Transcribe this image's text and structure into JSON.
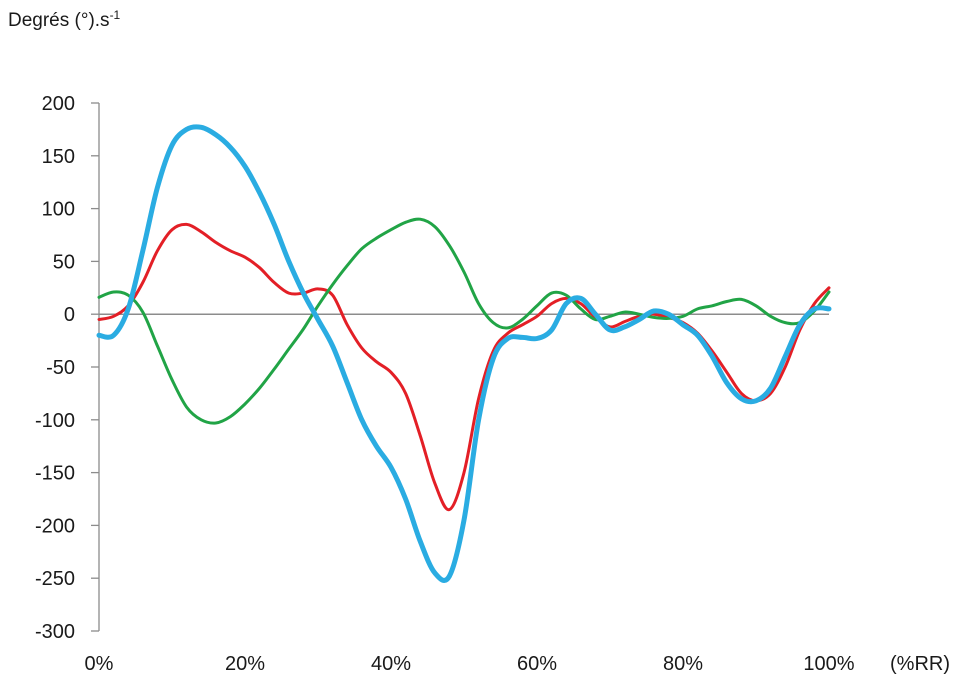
{
  "chart_data": {
    "type": "line",
    "ylabel_main": "Degrés (°).s",
    "ylabel_sup": "-1",
    "xunit_label": "(%RR)",
    "xlim": [
      0,
      100
    ],
    "ylim": [
      -300,
      200
    ],
    "x_ticks": [
      "0%",
      "20%",
      "40%",
      "60%",
      "80%",
      "100%"
    ],
    "x_tick_values": [
      0,
      20,
      40,
      60,
      80,
      100
    ],
    "y_ticks": [
      "200",
      "150",
      "100",
      "50",
      "0",
      "-50",
      "-100",
      "-150",
      "-200",
      "-250",
      "-300"
    ],
    "y_tick_values": [
      200,
      150,
      100,
      50,
      0,
      -50,
      -100,
      -150,
      -200,
      -250,
      -300
    ],
    "zero_line": true,
    "grid": false,
    "legend": "none",
    "series": [
      {
        "color": "#e31f26",
        "width": 3,
        "x": [
          0,
          2,
          4,
          6,
          8,
          10,
          12,
          14,
          16,
          18,
          20,
          22,
          24,
          26,
          28,
          30,
          32,
          34,
          36,
          38,
          40,
          42,
          44,
          46,
          48,
          50,
          52,
          54,
          56,
          58,
          60,
          62,
          64,
          66,
          68,
          70,
          72,
          74,
          76,
          78,
          80,
          82,
          84,
          86,
          88,
          90,
          92,
          94,
          96,
          98,
          100
        ],
        "y": [
          -5,
          -2,
          8,
          30,
          60,
          80,
          85,
          78,
          68,
          60,
          54,
          44,
          30,
          20,
          20,
          24,
          18,
          -10,
          -32,
          -45,
          -55,
          -75,
          -115,
          -160,
          -185,
          -150,
          -80,
          -35,
          -18,
          -10,
          -2,
          10,
          15,
          10,
          -3,
          -12,
          -7,
          -2,
          0,
          -3,
          -8,
          -18,
          -35,
          -55,
          -75,
          -82,
          -75,
          -50,
          -15,
          10,
          25
        ]
      },
      {
        "color": "#21a446",
        "width": 3,
        "x": [
          0,
          2,
          4,
          6,
          8,
          10,
          12,
          14,
          16,
          18,
          20,
          22,
          24,
          26,
          28,
          30,
          32,
          34,
          36,
          38,
          40,
          42,
          44,
          46,
          48,
          50,
          52,
          54,
          56,
          58,
          60,
          62,
          64,
          66,
          68,
          70,
          72,
          74,
          76,
          78,
          80,
          82,
          84,
          86,
          88,
          90,
          92,
          94,
          96,
          98,
          100
        ],
        "y": [
          16,
          21,
          18,
          2,
          -30,
          -62,
          -88,
          -100,
          -103,
          -97,
          -85,
          -70,
          -52,
          -33,
          -14,
          8,
          28,
          46,
          62,
          72,
          80,
          87,
          90,
          83,
          65,
          40,
          10,
          -8,
          -13,
          -5,
          8,
          20,
          18,
          5,
          -5,
          -2,
          2,
          0,
          -3,
          -4,
          -2,
          5,
          8,
          12,
          14,
          8,
          -2,
          -8,
          -8,
          3,
          21
        ]
      },
      {
        "color": "#2aace2",
        "width": 5,
        "x": [
          0,
          2,
          4,
          6,
          8,
          10,
          12,
          14,
          16,
          18,
          20,
          22,
          24,
          26,
          28,
          30,
          32,
          34,
          36,
          38,
          40,
          42,
          44,
          46,
          48,
          50,
          52,
          54,
          56,
          58,
          60,
          62,
          64,
          66,
          68,
          70,
          72,
          74,
          76,
          78,
          80,
          82,
          84,
          86,
          88,
          90,
          92,
          94,
          96,
          98,
          100
        ],
        "y": [
          -20,
          -20,
          5,
          60,
          120,
          160,
          175,
          177,
          170,
          158,
          140,
          115,
          85,
          50,
          20,
          -5,
          -30,
          -65,
          -100,
          -125,
          -145,
          -175,
          -215,
          -245,
          -248,
          -195,
          -100,
          -42,
          -23,
          -22,
          -23,
          -15,
          10,
          15,
          0,
          -15,
          -12,
          -5,
          3,
          0,
          -10,
          -20,
          -40,
          -65,
          -80,
          -82,
          -70,
          -40,
          -10,
          5,
          5
        ]
      }
    ]
  }
}
